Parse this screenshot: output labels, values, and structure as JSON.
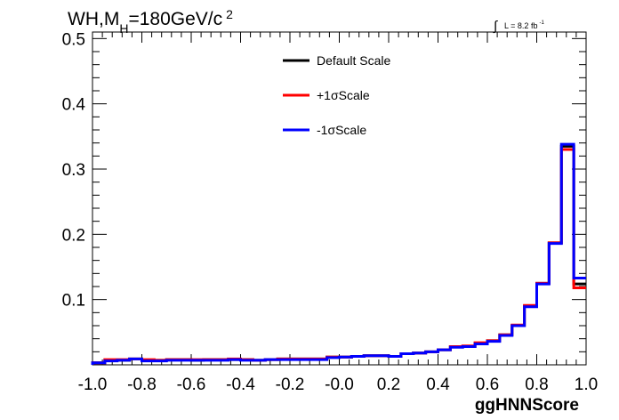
{
  "title_main": "WH,M",
  "title_sub": "H",
  "title_rest": "=180GeV/c",
  "title_sup": "2",
  "lumi_int": "∫",
  "lumi_text": "L = 8.2 fb",
  "lumi_sup": "-1",
  "chart_data": {
    "type": "line",
    "xlabel": "ggHNNScore",
    "ylabel": "",
    "xlim": [
      -1.0,
      1.0
    ],
    "ylim": [
      0.0,
      0.51
    ],
    "x_ticks": [
      "-1.0",
      "-0.8",
      "-0.6",
      "-0.4",
      "-0.2",
      "-0.0",
      "0.2",
      "0.4",
      "0.6",
      "0.8",
      "1.0"
    ],
    "y_ticks": [
      "0.1",
      "0.2",
      "0.3",
      "0.4",
      "0.5"
    ],
    "legend_position": "top-center",
    "bin_edges": [
      -1.0,
      -0.95,
      -0.9,
      -0.85,
      -0.8,
      -0.75,
      -0.7,
      -0.65,
      -0.6,
      -0.55,
      -0.5,
      -0.45,
      -0.4,
      -0.35,
      -0.3,
      -0.25,
      -0.2,
      -0.15,
      -0.1,
      -0.05,
      0.0,
      0.05,
      0.1,
      0.15,
      0.2,
      0.25,
      0.3,
      0.35,
      0.4,
      0.45,
      0.5,
      0.55,
      0.6,
      0.65,
      0.7,
      0.75,
      0.8,
      0.85,
      0.9,
      0.95,
      1.0
    ],
    "series": [
      {
        "name": "Default Scale",
        "color": "#000000",
        "values": [
          0.003,
          0.007,
          0.007,
          0.009,
          0.007,
          0.007,
          0.008,
          0.008,
          0.007,
          0.008,
          0.008,
          0.008,
          0.008,
          0.007,
          0.008,
          0.009,
          0.009,
          0.009,
          0.009,
          0.012,
          0.012,
          0.013,
          0.014,
          0.014,
          0.013,
          0.017,
          0.018,
          0.02,
          0.023,
          0.028,
          0.028,
          0.033,
          0.037,
          0.046,
          0.06,
          0.09,
          0.125,
          0.187,
          0.335,
          0.124
        ]
      },
      {
        "name": "+1σScale",
        "color": "#ff0000",
        "values": [
          0.003,
          0.008,
          0.008,
          0.009,
          0.008,
          0.007,
          0.008,
          0.008,
          0.008,
          0.008,
          0.008,
          0.009,
          0.008,
          0.007,
          0.008,
          0.009,
          0.009,
          0.009,
          0.009,
          0.012,
          0.012,
          0.013,
          0.014,
          0.014,
          0.013,
          0.017,
          0.018,
          0.02,
          0.023,
          0.028,
          0.029,
          0.034,
          0.037,
          0.046,
          0.061,
          0.091,
          0.125,
          0.187,
          0.33,
          0.118
        ]
      },
      {
        "name": "-1σScale",
        "color": "#0000ff",
        "values": [
          0.003,
          0.006,
          0.007,
          0.009,
          0.006,
          0.006,
          0.007,
          0.007,
          0.007,
          0.007,
          0.007,
          0.008,
          0.007,
          0.007,
          0.008,
          0.008,
          0.008,
          0.008,
          0.008,
          0.011,
          0.012,
          0.013,
          0.014,
          0.014,
          0.013,
          0.017,
          0.018,
          0.02,
          0.023,
          0.027,
          0.028,
          0.032,
          0.036,
          0.045,
          0.06,
          0.089,
          0.124,
          0.186,
          0.338,
          0.133
        ]
      }
    ]
  }
}
